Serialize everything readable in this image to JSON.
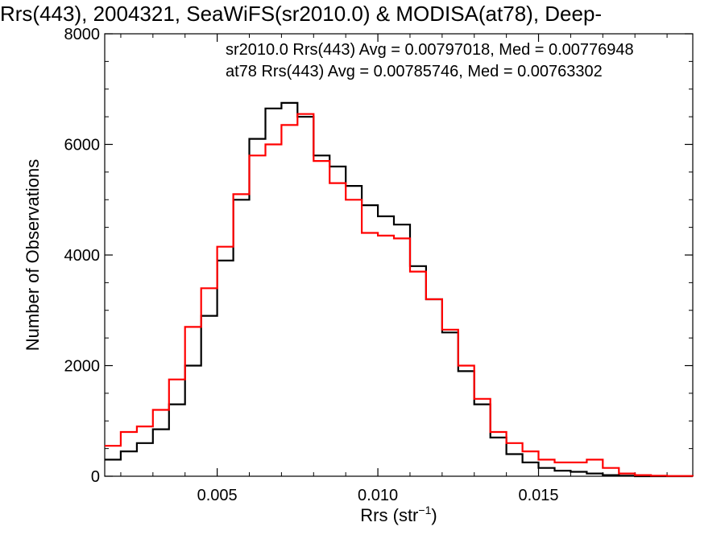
{
  "chart_data": {
    "type": "line",
    "title": "Rrs(443), 2004321, SeaWiFS(sr2010.0) & MODISA(at78), Deep-",
    "xlabel": "Rrs (str",
    "xlabel_sup": "−1",
    "xlabel_close": ")",
    "ylabel": "Number of Observations",
    "xlim": [
      0.0015,
      0.0198
    ],
    "ylim": [
      0,
      8000
    ],
    "xticks": [
      0.005,
      0.01,
      0.015
    ],
    "xtick_labels": [
      "0.005",
      "0.010",
      "0.015"
    ],
    "yticks": [
      0,
      2000,
      4000,
      6000,
      8000
    ],
    "ytick_labels": [
      "0",
      "2000",
      "4000",
      "6000",
      "8000"
    ],
    "grid": false,
    "legend_position": "top-right",
    "series": [
      {
        "name": "sr2010.0",
        "legend_text": "sr2010.0 Rrs(443) Avg = 0.00797018, Med = 0.00776948",
        "color": "#000000",
        "x": [
          0.0015,
          0.002,
          0.0025,
          0.003,
          0.0035,
          0.004,
          0.0045,
          0.005,
          0.0055,
          0.006,
          0.0065,
          0.007,
          0.0075,
          0.008,
          0.0085,
          0.009,
          0.0095,
          0.01,
          0.0105,
          0.011,
          0.0115,
          0.012,
          0.0125,
          0.013,
          0.0135,
          0.014,
          0.0145,
          0.015,
          0.0155,
          0.016,
          0.0165,
          0.017,
          0.0175,
          0.018,
          0.0185,
          0.019,
          0.0198
        ],
        "y": [
          300,
          450,
          600,
          850,
          1300,
          2000,
          2900,
          3900,
          5000,
          6100,
          6650,
          6750,
          6500,
          5800,
          5600,
          5250,
          4900,
          4700,
          4550,
          3800,
          3200,
          2600,
          1900,
          1300,
          700,
          400,
          250,
          150,
          100,
          80,
          50,
          20,
          10,
          0,
          0,
          0,
          0
        ]
      },
      {
        "name": "at78",
        "legend_text": "at78 Rrs(443) Avg = 0.00785746, Med = 0.00763302",
        "color": "#ff0000",
        "x": [
          0.0015,
          0.002,
          0.0025,
          0.003,
          0.0035,
          0.004,
          0.0045,
          0.005,
          0.0055,
          0.006,
          0.0065,
          0.007,
          0.0075,
          0.008,
          0.0085,
          0.009,
          0.0095,
          0.01,
          0.0105,
          0.011,
          0.0115,
          0.012,
          0.0125,
          0.013,
          0.0135,
          0.014,
          0.0145,
          0.015,
          0.0155,
          0.016,
          0.0165,
          0.017,
          0.0175,
          0.018,
          0.0185,
          0.019,
          0.0198
        ],
        "y": [
          550,
          800,
          900,
          1200,
          1750,
          2700,
          3400,
          4150,
          5100,
          5800,
          6000,
          6350,
          6550,
          5700,
          5300,
          5000,
          4400,
          4350,
          4300,
          3700,
          3200,
          2650,
          2000,
          1400,
          800,
          600,
          450,
          300,
          250,
          250,
          300,
          150,
          50,
          20,
          10,
          5,
          0
        ]
      }
    ]
  }
}
